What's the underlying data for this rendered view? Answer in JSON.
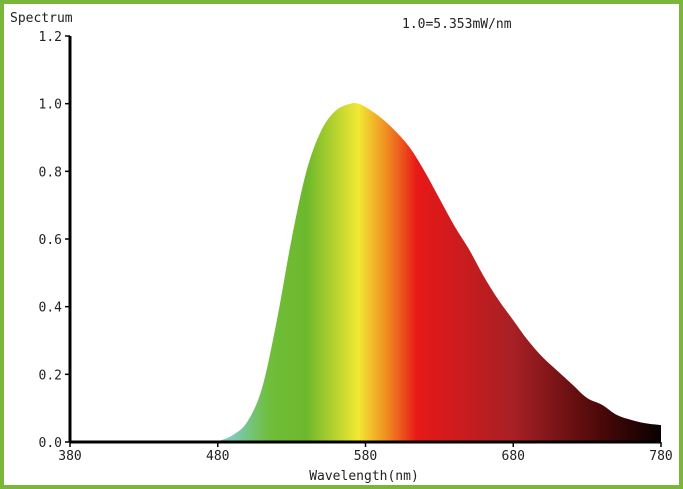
{
  "chart_data": {
    "type": "area",
    "title": "Spectrum",
    "annotation": "1.0=5.353mW/nm",
    "xlabel": "Wavelength(nm)",
    "ylabel": "",
    "xlim": [
      380,
      780
    ],
    "ylim": [
      0,
      1.2
    ],
    "xticks": [
      "380",
      "480",
      "580",
      "680",
      "780"
    ],
    "yticks": [
      "0.0",
      "0.2",
      "0.4",
      "0.6",
      "0.8",
      "1.0",
      "1.2"
    ],
    "grid": false,
    "x": [
      380,
      470,
      480,
      490,
      500,
      510,
      520,
      530,
      540,
      550,
      560,
      570,
      575,
      580,
      590,
      600,
      610,
      620,
      630,
      640,
      650,
      660,
      670,
      680,
      690,
      700,
      710,
      720,
      730,
      740,
      750,
      760,
      770,
      780
    ],
    "y": [
      0,
      0,
      0.003,
      0.02,
      0.06,
      0.16,
      0.36,
      0.6,
      0.8,
      0.92,
      0.98,
      1.0,
      1.0,
      0.99,
      0.96,
      0.92,
      0.87,
      0.8,
      0.72,
      0.64,
      0.57,
      0.49,
      0.42,
      0.36,
      0.3,
      0.25,
      0.21,
      0.17,
      0.13,
      0.11,
      0.08,
      0.065,
      0.055,
      0.05
    ],
    "fill_gradient": [
      {
        "nm": 490,
        "color": "#7ccab8"
      },
      {
        "nm": 515,
        "color": "#6fbd3a"
      },
      {
        "nm": 540,
        "color": "#6db82c"
      },
      {
        "nm": 575,
        "color": "#f2e832"
      },
      {
        "nm": 595,
        "color": "#f08a20"
      },
      {
        "nm": 615,
        "color": "#e81818"
      },
      {
        "nm": 680,
        "color": "#a82024"
      },
      {
        "nm": 740,
        "color": "#4a0808"
      },
      {
        "nm": 780,
        "color": "#080000"
      }
    ],
    "frame_color": "#7ab63a"
  }
}
